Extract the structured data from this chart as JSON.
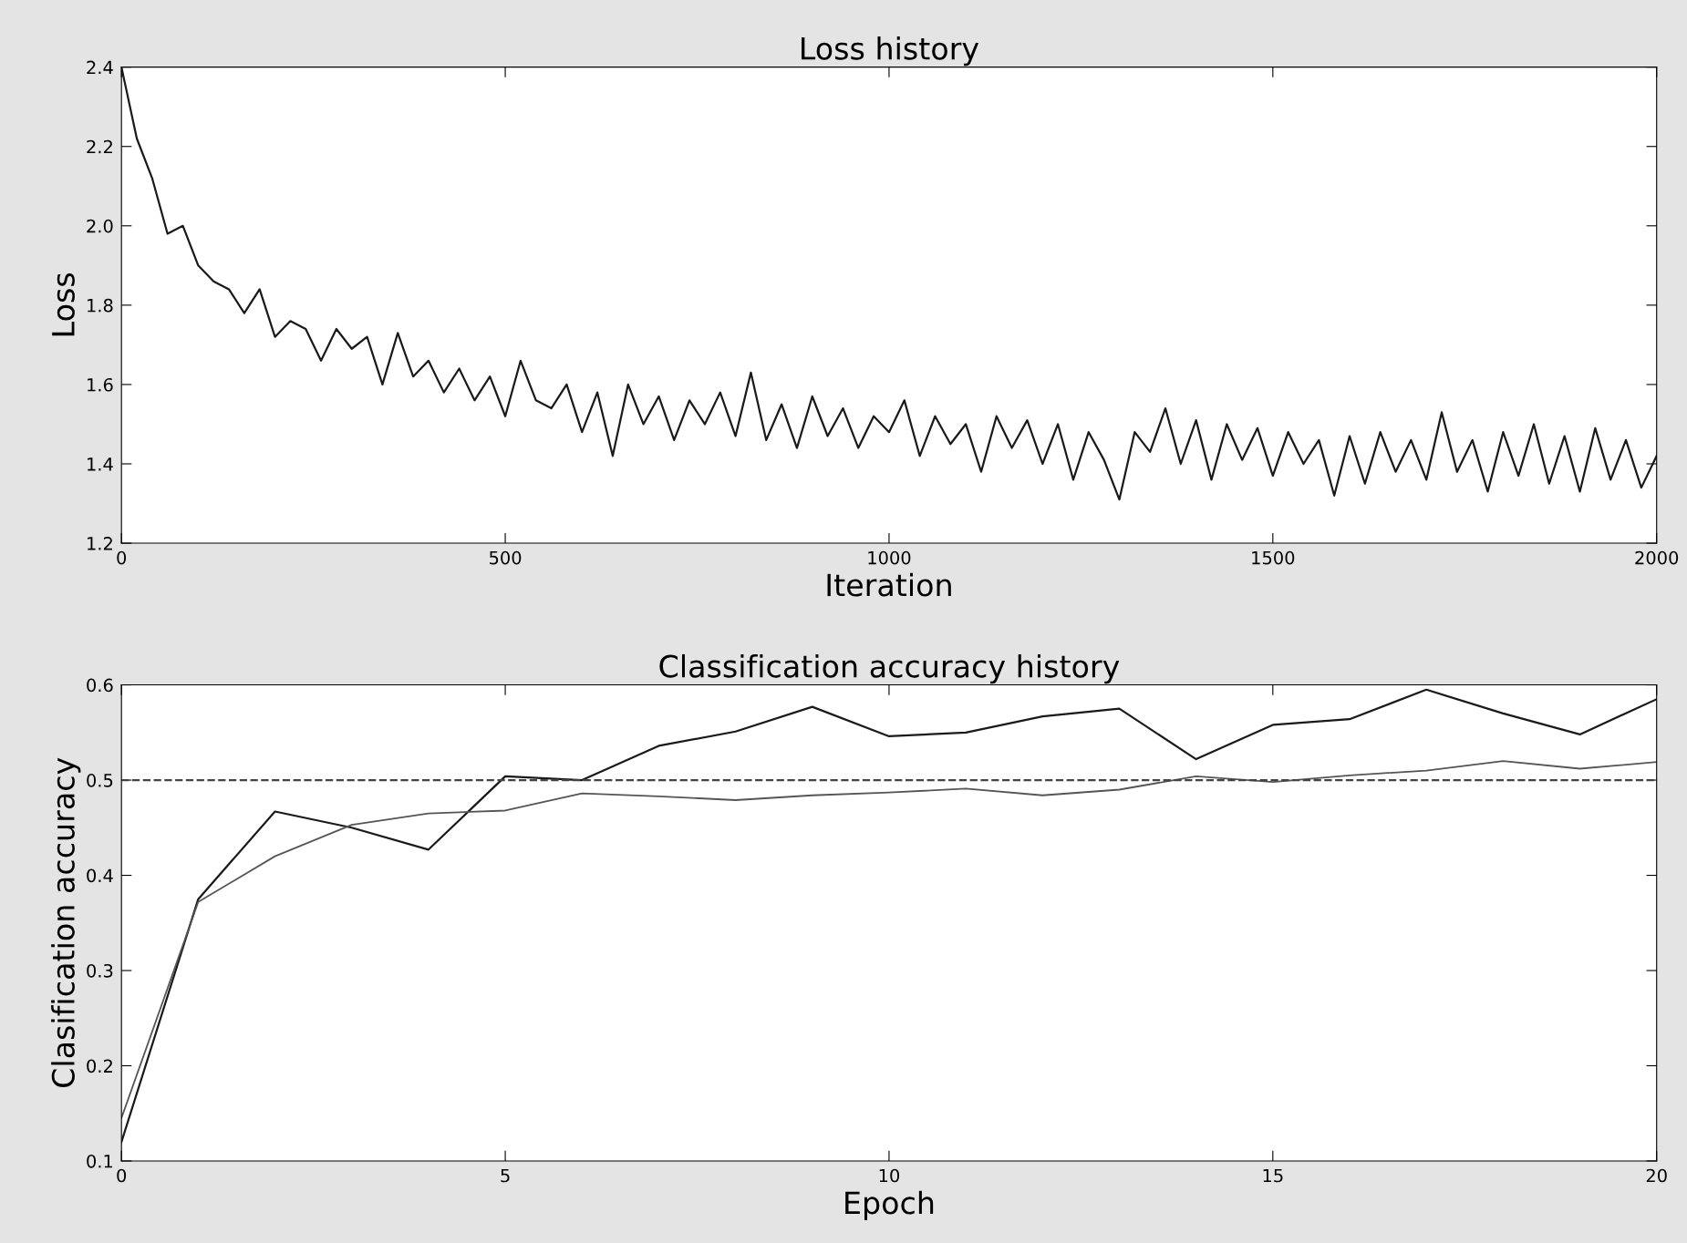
{
  "chart_data": [
    {
      "type": "line",
      "title": "Loss history",
      "xlabel": "Iteration",
      "ylabel": "Loss",
      "xlim": [
        0,
        2000
      ],
      "xticks": [
        0,
        500,
        1000,
        1500,
        2000
      ],
      "ylim": [
        1.2,
        2.4
      ],
      "yticks": [
        1.2,
        1.4,
        1.6,
        1.8,
        {
          "value": 2,
          "label": "2.0"
        },
        2.2,
        2.4
      ],
      "grid": false,
      "legend": false,
      "x": [
        0,
        20,
        40,
        60,
        80,
        100,
        120,
        140,
        160,
        180,
        200,
        220,
        240,
        260,
        280,
        300,
        320,
        340,
        360,
        380,
        400,
        420,
        440,
        460,
        480,
        500,
        520,
        540,
        560,
        580,
        600,
        620,
        640,
        660,
        680,
        700,
        720,
        740,
        760,
        780,
        800,
        820,
        840,
        860,
        880,
        900,
        920,
        940,
        960,
        980,
        1000,
        1020,
        1040,
        1060,
        1080,
        1100,
        1120,
        1140,
        1160,
        1180,
        1200,
        1220,
        1240,
        1260,
        1280,
        1300,
        1320,
        1340,
        1360,
        1380,
        1400,
        1420,
        1440,
        1460,
        1480,
        1500,
        1520,
        1540,
        1560,
        1580,
        1600,
        1620,
        1640,
        1660,
        1680,
        1700,
        1720,
        1740,
        1760,
        1780,
        1800,
        1820,
        1840,
        1860,
        1880,
        1900,
        1920,
        1940,
        1960,
        1980,
        2000
      ],
      "series": [
        {
          "color": "#1a1a1a",
          "values": [
            2.4,
            2.22,
            2.12,
            1.98,
            2.0,
            1.9,
            1.86,
            1.84,
            1.78,
            1.84,
            1.72,
            1.76,
            1.74,
            1.66,
            1.74,
            1.69,
            1.72,
            1.6,
            1.73,
            1.62,
            1.66,
            1.58,
            1.64,
            1.56,
            1.62,
            1.52,
            1.66,
            1.56,
            1.54,
            1.6,
            1.48,
            1.58,
            1.42,
            1.6,
            1.5,
            1.57,
            1.46,
            1.56,
            1.5,
            1.58,
            1.47,
            1.63,
            1.46,
            1.55,
            1.44,
            1.57,
            1.47,
            1.54,
            1.44,
            1.52,
            1.48,
            1.56,
            1.42,
            1.52,
            1.45,
            1.5,
            1.38,
            1.52,
            1.44,
            1.51,
            1.4,
            1.5,
            1.36,
            1.48,
            1.41,
            1.31,
            1.48,
            1.43,
            1.54,
            1.4,
            1.51,
            1.36,
            1.5,
            1.41,
            1.49,
            1.37,
            1.48,
            1.4,
            1.46,
            1.32,
            1.47,
            1.35,
            1.48,
            1.38,
            1.46,
            1.36,
            1.53,
            1.38,
            1.46,
            1.33,
            1.48,
            1.37,
            1.5,
            1.35,
            1.47,
            1.33,
            1.49,
            1.36,
            1.46,
            1.34,
            1.42
          ]
        }
      ]
    },
    {
      "type": "line",
      "title": "Classification accuracy history",
      "xlabel": "Epoch",
      "ylabel": "Clasification accuracy",
      "xlim": [
        0,
        20
      ],
      "xticks": [
        0,
        5,
        10,
        15,
        20
      ],
      "ylim": [
        0.1,
        0.6
      ],
      "yticks": [
        0.1,
        0.2,
        0.3,
        0.4,
        0.5,
        0.6
      ],
      "grid": false,
      "legend": false,
      "x": [
        0,
        1,
        2,
        3,
        4,
        5,
        6,
        7,
        8,
        9,
        10,
        11,
        12,
        13,
        14,
        15,
        16,
        17,
        18,
        19,
        20
      ],
      "ref_lines": [
        {
          "axis": "y",
          "value": 0.5,
          "color": "#444444",
          "line_style": "dashed"
        }
      ],
      "series": [
        {
          "color": "#1a1a1a",
          "values": [
            0.12,
            0.375,
            0.467,
            0.45,
            0.427,
            0.504,
            0.5,
            0.536,
            0.551,
            0.577,
            0.546,
            0.55,
            0.567,
            0.575,
            0.522,
            0.558,
            0.564,
            0.595,
            0.57,
            0.548,
            0.585
          ]
        },
        {
          "color": "#555555",
          "values": [
            0.145,
            0.372,
            0.42,
            0.453,
            0.465,
            0.468,
            0.486,
            0.483,
            0.479,
            0.484,
            0.487,
            0.491,
            0.484,
            0.49,
            0.504,
            0.498,
            0.505,
            0.51,
            0.52,
            0.512,
            0.519
          ]
        }
      ]
    }
  ]
}
